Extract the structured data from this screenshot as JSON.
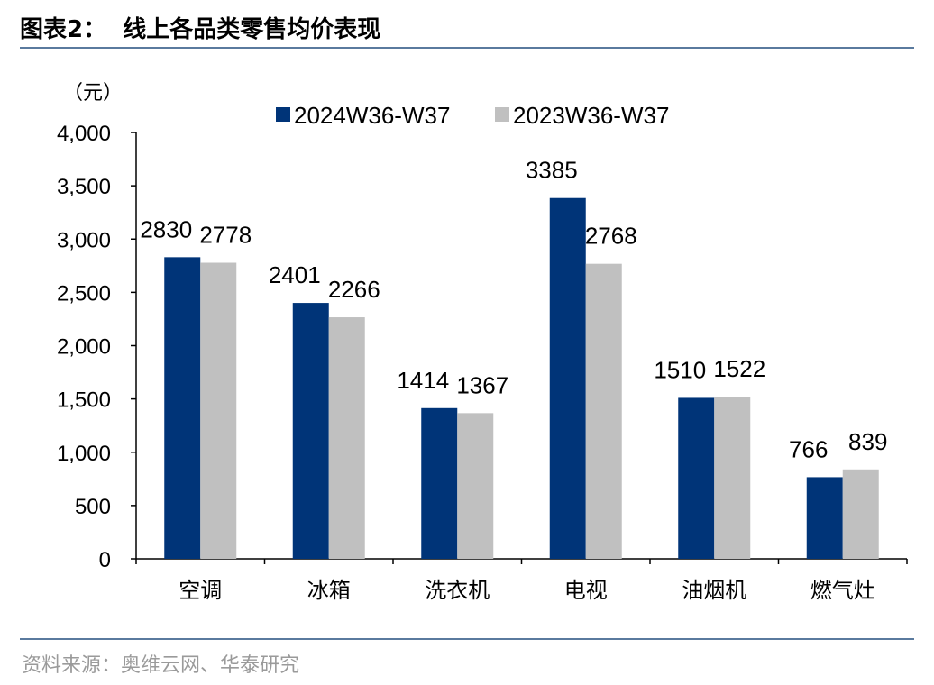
{
  "figure": {
    "title": "图表2：  线上各品类零售均价表现",
    "source": "资料来源：奥维云网、华泰研究"
  },
  "chart_data": {
    "type": "bar",
    "unit_label": "（元）",
    "categories": [
      "空调",
      "冰箱",
      "洗衣机",
      "电视",
      "油烟机",
      "燃气灶"
    ],
    "series": [
      {
        "name": "2024W36-W37",
        "color": "#003478",
        "values": [
          2830,
          2401,
          1414,
          3385,
          1510,
          766
        ]
      },
      {
        "name": "2023W36-W37",
        "color": "#c0c0c0",
        "values": [
          2778,
          2266,
          1367,
          2768,
          1522,
          839
        ]
      }
    ],
    "ylim": [
      0,
      4000
    ],
    "yticks": [
      0,
      500,
      1000,
      1500,
      2000,
      2500,
      3000,
      3500,
      4000
    ],
    "ytick_labels": [
      "0",
      "500",
      "1,000",
      "1,500",
      "2,000",
      "2,500",
      "3,000",
      "3,500",
      "4,000"
    ],
    "legend_position": "top-center",
    "grid": false
  }
}
